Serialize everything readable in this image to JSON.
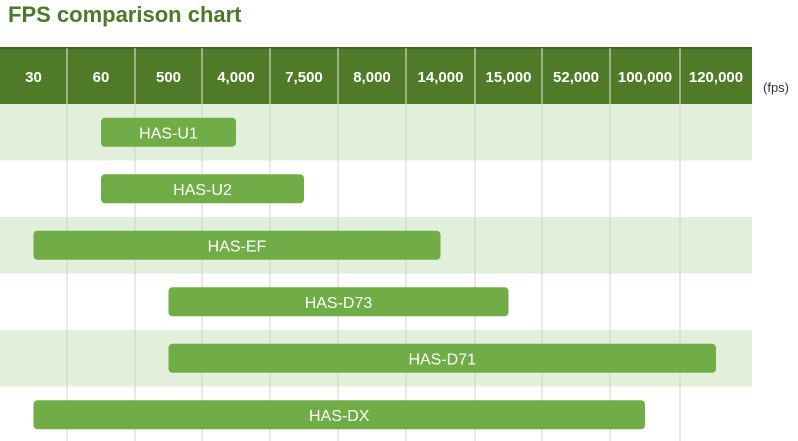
{
  "chart_data": {
    "type": "bar",
    "orientation": "horizontal-range",
    "title": "FPS comparison chart",
    "unit": "(fps)",
    "x_ticks": [
      "30",
      "60",
      "500",
      "4,000",
      "7,500",
      "8,000",
      "14,000",
      "15,000",
      "52,000",
      "100,000",
      "120,000"
    ],
    "x_tick_values": [
      30,
      60,
      500,
      4000,
      7500,
      8000,
      14000,
      15000,
      52000,
      100000,
      120000
    ],
    "series": [
      {
        "name": "HAS-U1",
        "min": 60,
        "max": 4000
      },
      {
        "name": "HAS-U2",
        "min": 60,
        "max": 7500
      },
      {
        "name": "HAS-EF",
        "min": 30,
        "max": 14000
      },
      {
        "name": "HAS-D73",
        "min": 500,
        "max": 15000
      },
      {
        "name": "HAS-D71",
        "min": 500,
        "max": 120000
      },
      {
        "name": "HAS-DX",
        "min": 30,
        "max": 100000
      }
    ],
    "grid": true,
    "colors": {
      "header": "#4f7a28",
      "title": "#4a7a2a",
      "bar": "#70ad47",
      "row_band": "#e2efda",
      "row_plain": "#ffffff",
      "gridline": "#d0d0d0"
    }
  }
}
